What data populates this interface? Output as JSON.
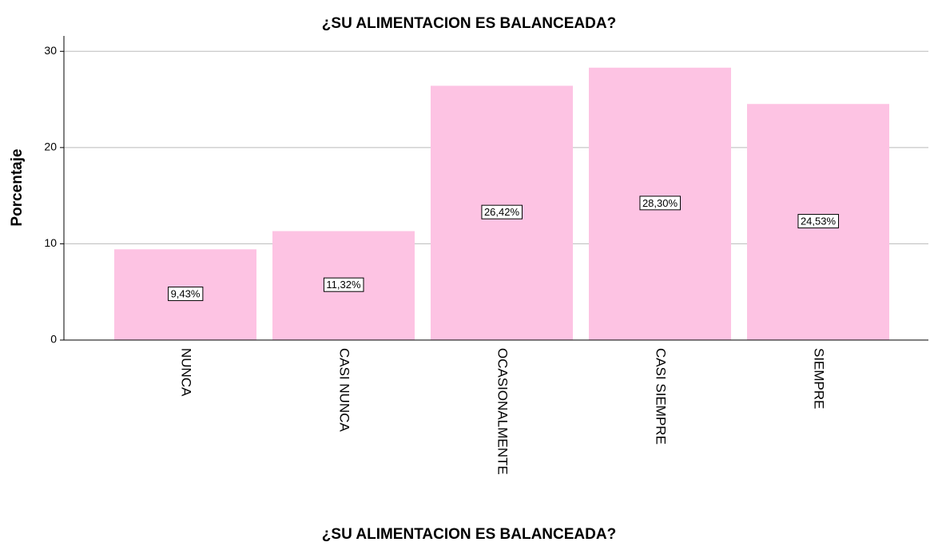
{
  "chart_data": {
    "type": "bar",
    "title": "¿SU ALIMENTACION ES BALANCEADA?",
    "x_label": "¿SU ALIMENTACION ES BALANCEADA?",
    "y_label": "Porcentaje",
    "categories": [
      "NUNCA",
      "CASI NUNCA",
      "OCASIONALMENTE",
      "CASI SIEMPRE",
      "SIEMPRE"
    ],
    "values": [
      9.43,
      11.32,
      26.42,
      28.3,
      24.53
    ],
    "value_labels": [
      "9,43%",
      "11,32%",
      "26,42%",
      "28,30%",
      "24,53%"
    ],
    "color": "#fdc3e3",
    "ylim": [
      0,
      31.6
    ],
    "yticks": [
      0,
      10,
      20,
      30
    ],
    "grid": true
  }
}
